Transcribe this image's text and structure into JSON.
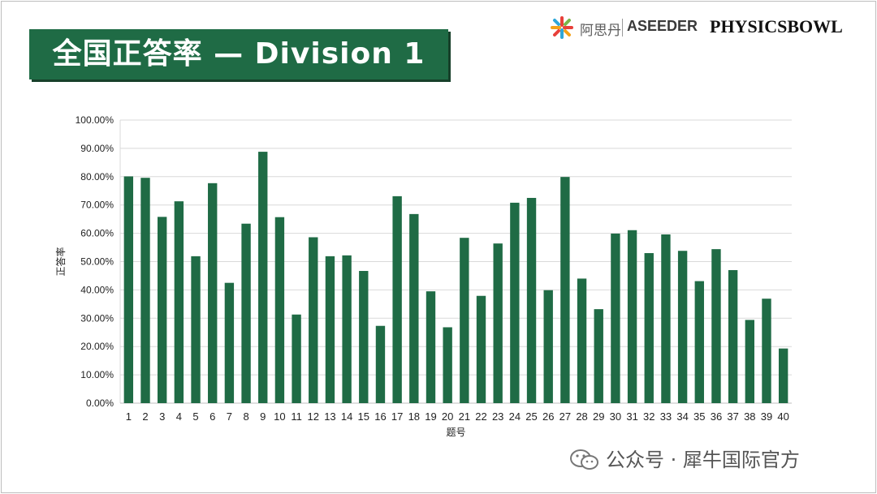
{
  "slide": {
    "title": "全国正答率 — Division 1"
  },
  "logos": {
    "cn_name": "阿思丹",
    "aseeder": "ASEEDER",
    "physicsbowl": "PHYSICSBOWL"
  },
  "watermark": {
    "text": "公众号 · 犀牛国际官方"
  },
  "colors": {
    "title_bg": "#1f6b45",
    "bar": "#1f6b45"
  },
  "chart_data": {
    "type": "bar",
    "title": "",
    "xlabel": "题号",
    "ylabel": "正答率",
    "ylim": [
      0,
      100
    ],
    "y_ticks": [
      "0.00%",
      "10.00%",
      "20.00%",
      "30.00%",
      "40.00%",
      "50.00%",
      "60.00%",
      "70.00%",
      "80.00%",
      "90.00%",
      "100.00%"
    ],
    "grid": true,
    "categories": [
      "1",
      "2",
      "3",
      "4",
      "5",
      "6",
      "7",
      "8",
      "9",
      "10",
      "11",
      "12",
      "13",
      "14",
      "15",
      "16",
      "17",
      "18",
      "19",
      "20",
      "21",
      "22",
      "23",
      "24",
      "25",
      "26",
      "27",
      "28",
      "29",
      "30",
      "31",
      "32",
      "33",
      "34",
      "35",
      "36",
      "37",
      "38",
      "39",
      "40"
    ],
    "values": [
      80.1,
      79.6,
      65.8,
      71.3,
      51.9,
      77.7,
      42.5,
      63.4,
      88.8,
      65.7,
      31.3,
      58.6,
      51.9,
      52.2,
      46.7,
      27.3,
      73.1,
      66.8,
      39.5,
      26.8,
      58.4,
      37.9,
      56.4,
      70.8,
      72.5,
      39.9,
      79.9,
      44.0,
      33.2,
      59.9,
      61.1,
      53.0,
      59.6,
      53.8,
      43.1,
      54.4,
      47.0,
      29.4,
      36.9,
      19.3
    ]
  }
}
